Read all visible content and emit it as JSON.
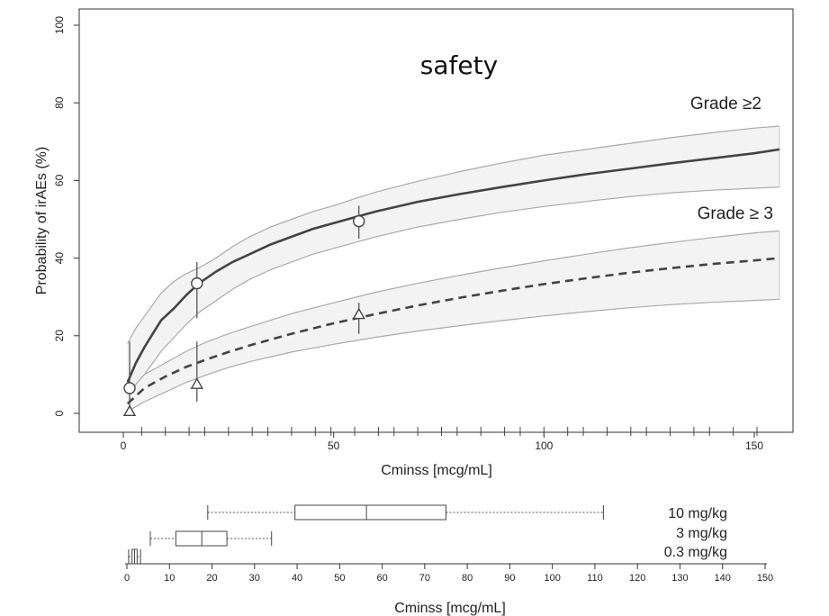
{
  "chart_data": [
    {
      "type": "line",
      "title": "safety",
      "xlabel": "Cminss [mcg/mL]",
      "ylabel": "Probability of irAEs (%)",
      "xlim": [
        -5,
        158
      ],
      "ylim": [
        -3,
        105
      ],
      "x_ticks": [
        0,
        50,
        100,
        150
      ],
      "y_ticks": [
        0,
        20,
        40,
        60,
        80,
        100
      ],
      "grid": false,
      "series": [
        {
          "name": "Grade ≥2",
          "style": "solid",
          "x": [
            1,
            3,
            5,
            7,
            9,
            12,
            15,
            18,
            22,
            26,
            30,
            35,
            40,
            45,
            50,
            55,
            60,
            70,
            80,
            90,
            100,
            110,
            120,
            130,
            140,
            150,
            156
          ],
          "y": [
            8,
            13,
            17,
            20.5,
            24,
            27,
            30.5,
            33.5,
            36.5,
            39,
            41,
            43.5,
            45.5,
            47.5,
            49,
            50.5,
            52,
            54.5,
            56.5,
            58.3,
            60,
            61.6,
            63,
            64.4,
            65.7,
            67,
            68
          ],
          "ci_upper": [
            18,
            22,
            25,
            28,
            31,
            34,
            36,
            37.5,
            40,
            43,
            45.5,
            48,
            50,
            52,
            53.5,
            55.3,
            57,
            59.8,
            62.3,
            64.5,
            66.5,
            68,
            69.5,
            71,
            72.3,
            73.5,
            74
          ],
          "ci_lower": [
            4,
            7.5,
            10,
            13,
            16,
            19.5,
            23,
            26,
            29,
            32,
            34.5,
            37,
            39,
            41,
            42.5,
            44,
            45.5,
            48,
            50,
            51.8,
            53.3,
            54.6,
            55.8,
            56.8,
            57.5,
            58,
            58.3
          ],
          "observed": [
            {
              "x": 1.5,
              "y": 6.5,
              "lo": 2,
              "hi": 18.5
            },
            {
              "x": 17.5,
              "y": 33.5,
              "lo": 24.5,
              "hi": 39
            },
            {
              "x": 56,
              "y": 49.5,
              "lo": 45,
              "hi": 53.5
            }
          ],
          "marker": "circle"
        },
        {
          "name": "Grade ≥ 3",
          "style": "dashed",
          "x": [
            1,
            5,
            10,
            15,
            20,
            25,
            30,
            40,
            50,
            60,
            70,
            80,
            90,
            100,
            110,
            120,
            130,
            140,
            150,
            156
          ],
          "y": [
            2.5,
            6.5,
            9.5,
            12,
            14,
            15.8,
            17.5,
            20.5,
            23.2,
            25.6,
            27.8,
            29.8,
            31.6,
            33.3,
            34.8,
            36.2,
            37.4,
            38.5,
            39.4,
            40
          ],
          "ci_upper": [
            5,
            10,
            13,
            16,
            18.5,
            20.5,
            22.3,
            25.7,
            28.5,
            31.2,
            33.5,
            35.6,
            37.5,
            39.3,
            41,
            42.6,
            44,
            45.3,
            46.5,
            47
          ],
          "ci_lower": [
            0.5,
            3,
            5.5,
            8,
            10,
            11.8,
            13.3,
            15.8,
            17.8,
            19.6,
            21.2,
            22.6,
            23.9,
            25.1,
            26.2,
            27.2,
            28,
            28.6,
            29.1,
            29.4
          ],
          "observed": [
            {
              "x": 1.5,
              "y": 0.5,
              "lo": 0,
              "hi": 0
            },
            {
              "x": 17.5,
              "y": 7.5,
              "lo": 3,
              "hi": 18.5
            },
            {
              "x": 56,
              "y": 25.5,
              "lo": 20.5,
              "hi": 28.5
            }
          ],
          "marker": "triangle"
        }
      ]
    },
    {
      "type": "boxplot",
      "xlabel": "Cminss [mcg/mL]",
      "xlim": [
        0,
        150
      ],
      "x_ticks": [
        0,
        10,
        20,
        30,
        40,
        50,
        60,
        70,
        80,
        90,
        100,
        110,
        120,
        130,
        140,
        150
      ],
      "boxes": [
        {
          "name": "10 mg/kg",
          "min": 19,
          "q1": 39.5,
          "median": 56.3,
          "q3": 75,
          "max": 112
        },
        {
          "name": "3 mg/kg",
          "min": 5.5,
          "q1": 11.5,
          "median": 17.6,
          "q3": 23.5,
          "max": 34
        },
        {
          "name": "0.3 mg/kg",
          "min": 0.4,
          "q1": 1.2,
          "median": 1.8,
          "q3": 2.4,
          "max": 3.2
        }
      ]
    }
  ]
}
